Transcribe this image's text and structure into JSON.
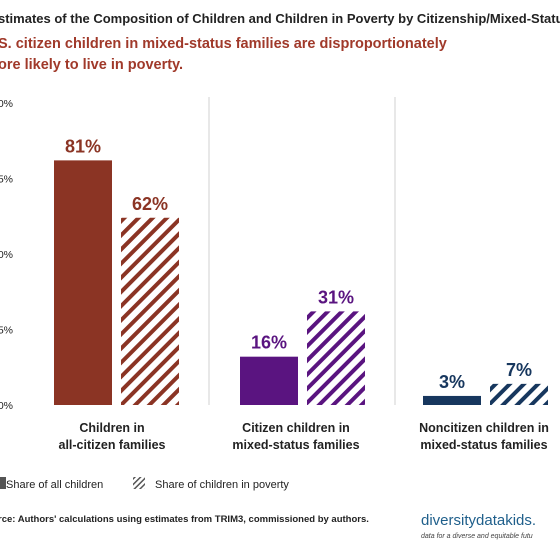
{
  "header": {
    "title": "stimates of the Composition of Children and Children in Poverty by Citizenship/Mixed-Status",
    "subtitle_line1": "S. citizen children in mixed-status families are disproportionately",
    "subtitle_line2": "ore likely to live in poverty."
  },
  "chart_data": {
    "type": "bar",
    "ylim": [
      0,
      100
    ],
    "y_ticks": [
      "00%",
      "5%",
      "0%",
      "5%",
      "0%"
    ],
    "grid": false,
    "legend_position": "bottom-left",
    "categories": [
      {
        "line1": "Children in",
        "line2": "all-citizen families",
        "color": "#8b3424"
      },
      {
        "line1": "Citizen children in",
        "line2": "mixed-status families",
        "color": "#5a1480"
      },
      {
        "line1": "Noncitizen children in",
        "line2": "mixed-status families",
        "color": "#17375e"
      }
    ],
    "series": [
      {
        "name": "Share of all children",
        "values": [
          81,
          16,
          3
        ],
        "labels": [
          "81%",
          "16%",
          "3%"
        ],
        "pattern": "solid"
      },
      {
        "name": "Share of children in poverty",
        "values": [
          62,
          31,
          7
        ],
        "labels": [
          "62%",
          "31%",
          "7%"
        ],
        "pattern": "hatched"
      }
    ]
  },
  "footer": {
    "source": "rce: Authors' calculations using estimates from TRIM3, commissioned by authors.",
    "logo_text": "diversitydatakids.",
    "logo_tagline": "data for a diverse and equitable futu"
  },
  "colors": {
    "legend_swatch": "#555555",
    "text": "#222222"
  }
}
